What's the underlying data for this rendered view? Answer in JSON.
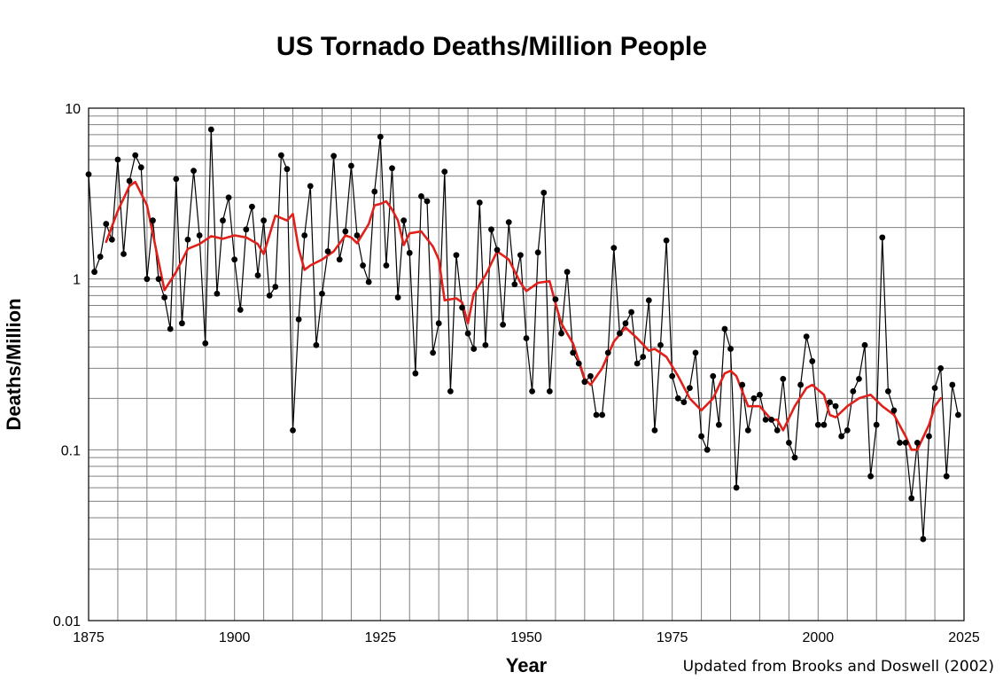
{
  "chart_data": {
    "type": "line",
    "title": "US Tornado Deaths/Million People",
    "xlabel": "Year",
    "ylabel": "Deaths/Million",
    "credit": "Updated from Brooks and Doswell (2002)",
    "xlim": [
      1875,
      2025
    ],
    "ylim": [
      0.01,
      10
    ],
    "y_scale": "log",
    "grid": true,
    "x_ticks": [
      "1875",
      "1900",
      "1925",
      "1950",
      "1975",
      "2000",
      "2025"
    ],
    "y_ticks": [
      "10",
      "1",
      "0.1",
      "0.01"
    ],
    "colors": {
      "series": "#000000",
      "smoothed": "#e0201a",
      "grid": "#808080"
    },
    "series": [
      {
        "x": [
          1875,
          1876,
          1877,
          1878,
          1879,
          1880,
          1881,
          1882,
          1883,
          1884,
          1885,
          1886,
          1887,
          1888,
          1889,
          1890,
          1891,
          1892,
          1893,
          1894,
          1895,
          1896,
          1897,
          1898,
          1899,
          1900,
          1901,
          1902,
          1903,
          1904,
          1905,
          1906,
          1907,
          1908,
          1909,
          1910,
          1911,
          1912,
          1913,
          1914,
          1915,
          1916,
          1917,
          1918,
          1919,
          1920,
          1921,
          1922,
          1923,
          1924,
          1925,
          1926,
          1927,
          1928,
          1929,
          1930,
          1931,
          1932,
          1933,
          1934,
          1935,
          1936,
          1937,
          1938,
          1939,
          1940,
          1941,
          1942,
          1943,
          1944,
          1945,
          1946,
          1947,
          1948,
          1949,
          1950,
          1951,
          1952,
          1953,
          1954,
          1955,
          1956,
          1957,
          1958,
          1959,
          1960,
          1961,
          1962,
          1963,
          1964,
          1965,
          1966,
          1967,
          1968,
          1969,
          1970,
          1971,
          1972,
          1973,
          1974,
          1975,
          1976,
          1977,
          1978,
          1979,
          1980,
          1981,
          1982,
          1983,
          1984,
          1985,
          1986,
          1987,
          1988,
          1989,
          1990,
          1991,
          1992,
          1993,
          1994,
          1995,
          1996,
          1997,
          1998,
          1999,
          2000,
          2001,
          2002,
          2003,
          2004,
          2005,
          2006,
          2007,
          2008,
          2009,
          2010,
          2011,
          2012,
          2013,
          2014,
          2015,
          2016,
          2017,
          2018,
          2019,
          2020,
          2021,
          2022,
          2023,
          2024
        ],
        "values": [
          4.1,
          1.1,
          1.35,
          2.1,
          1.7,
          5.0,
          1.4,
          3.75,
          5.3,
          4.5,
          1.0,
          2.2,
          1.0,
          0.78,
          0.51,
          3.85,
          0.55,
          1.7,
          4.3,
          1.8,
          0.42,
          7.5,
          0.82,
          2.2,
          3.0,
          1.3,
          0.66,
          1.95,
          2.65,
          1.05,
          2.2,
          0.8,
          0.9,
          5.3,
          4.4,
          0.13,
          0.58,
          1.8,
          3.5,
          0.41,
          0.82,
          1.45,
          5.25,
          1.3,
          1.9,
          4.6,
          1.8,
          1.2,
          0.96,
          3.25,
          6.8,
          1.2,
          4.45,
          0.78,
          2.2,
          1.42,
          0.28,
          3.05,
          2.85,
          0.37,
          0.55,
          4.25,
          0.22,
          1.38,
          0.68,
          0.48,
          0.39,
          2.8,
          0.41,
          1.95,
          1.48,
          0.54,
          2.15,
          0.93,
          1.38,
          0.45,
          0.22,
          1.43,
          3.2,
          0.22,
          0.76,
          0.48,
          1.1,
          0.37,
          0.32,
          0.25,
          0.27,
          0.16,
          0.16,
          0.37,
          1.52,
          0.48,
          0.55,
          0.64,
          0.32,
          0.35,
          0.75,
          0.13,
          0.41,
          1.68,
          0.27,
          0.2,
          0.19,
          0.23,
          0.37,
          0.12,
          0.1,
          0.27,
          0.14,
          0.51,
          0.39,
          0.06,
          0.24,
          0.13,
          0.2,
          0.21,
          0.15,
          0.15,
          0.13,
          0.26,
          0.11,
          0.09,
          0.24,
          0.46,
          0.33,
          0.14,
          0.14,
          0.19,
          0.18,
          0.12,
          0.13,
          0.22,
          0.26,
          0.41,
          0.07,
          0.14,
          1.75,
          0.22,
          0.17,
          0.11,
          0.11,
          0.052,
          0.11,
          0.03,
          0.12,
          0.23,
          0.3,
          0.07,
          0.24,
          0.16
        ]
      },
      {
        "x": [
          1878,
          1880,
          1882,
          1883,
          1885,
          1888,
          1890,
          1892,
          1894,
          1896,
          1898,
          1900,
          1902,
          1904,
          1905,
          1907,
          1909,
          1910,
          1911,
          1912,
          1913,
          1915,
          1917,
          1919,
          1920,
          1921,
          1923,
          1924,
          1925,
          1926,
          1927,
          1928,
          1929,
          1930,
          1932,
          1934,
          1935,
          1936,
          1938,
          1939,
          1940,
          1941,
          1943,
          1945,
          1947,
          1949,
          1950,
          1952,
          1954,
          1955,
          1956,
          1957,
          1958,
          1960,
          1961,
          1963,
          1965,
          1967,
          1969,
          1971,
          1972,
          1974,
          1976,
          1978,
          1980,
          1982,
          1984,
          1985,
          1986,
          1988,
          1990,
          1992,
          1993,
          1994,
          1996,
          1998,
          1999,
          2001,
          2002,
          2003,
          2005,
          2007,
          2009,
          2011,
          2013,
          2015,
          2016,
          2017,
          2019,
          2020,
          2021
        ],
        "values": [
          1.65,
          2.5,
          3.5,
          3.7,
          2.7,
          0.86,
          1.1,
          1.5,
          1.6,
          1.78,
          1.72,
          1.8,
          1.75,
          1.6,
          1.4,
          2.35,
          2.2,
          2.4,
          1.5,
          1.13,
          1.2,
          1.3,
          1.45,
          1.8,
          1.75,
          1.62,
          2.1,
          2.7,
          2.75,
          2.85,
          2.55,
          2.2,
          1.58,
          1.85,
          1.9,
          1.55,
          1.3,
          0.75,
          0.77,
          0.73,
          0.55,
          0.82,
          1.05,
          1.45,
          1.3,
          0.95,
          0.85,
          0.95,
          0.97,
          0.72,
          0.55,
          0.48,
          0.42,
          0.26,
          0.24,
          0.3,
          0.43,
          0.52,
          0.45,
          0.38,
          0.39,
          0.35,
          0.27,
          0.2,
          0.17,
          0.2,
          0.28,
          0.29,
          0.27,
          0.18,
          0.18,
          0.15,
          0.15,
          0.13,
          0.18,
          0.23,
          0.24,
          0.21,
          0.16,
          0.155,
          0.18,
          0.2,
          0.21,
          0.18,
          0.16,
          0.12,
          0.1,
          0.1,
          0.14,
          0.18,
          0.2
        ]
      }
    ]
  }
}
